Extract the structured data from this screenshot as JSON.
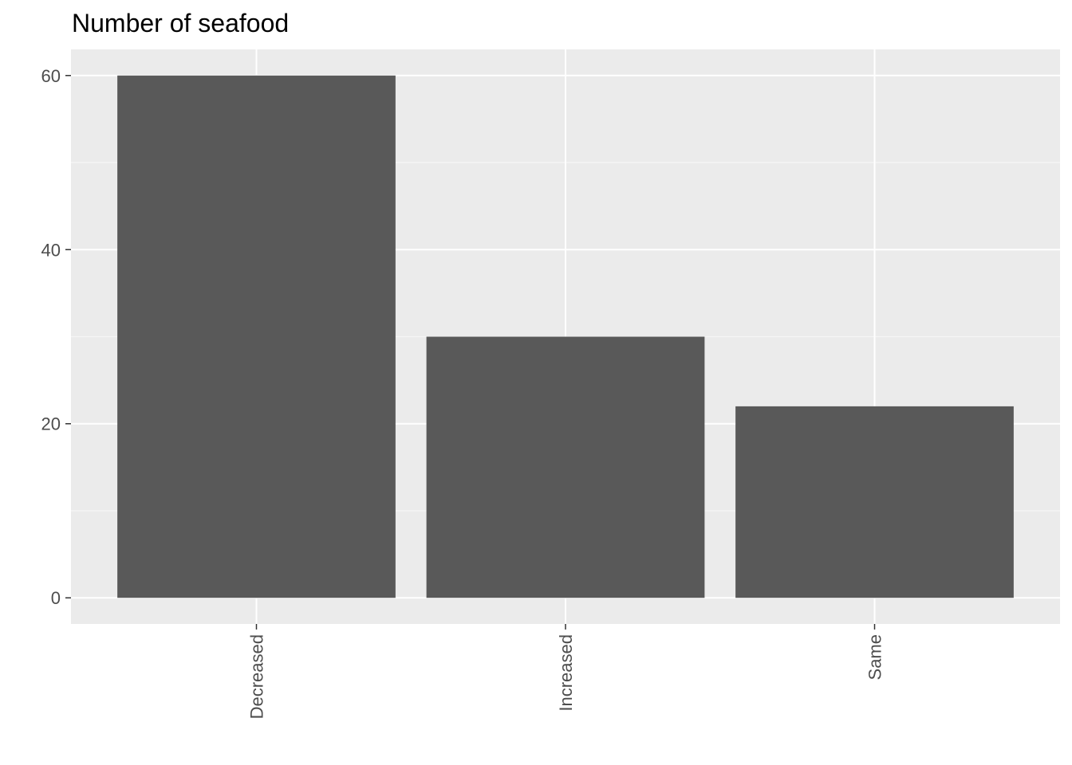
{
  "chart_data": {
    "type": "bar",
    "title": "Number of seafood",
    "xlabel": "",
    "ylabel": "",
    "categories": [
      "Decreased",
      "Increased",
      "Same"
    ],
    "values": [
      60,
      30,
      22
    ],
    "ylim": [
      0,
      63
    ],
    "yticks": [
      0,
      20,
      40,
      60
    ],
    "ytick_labels": [
      "0",
      "20",
      "40",
      "60"
    ],
    "grid": true,
    "legend": "none",
    "x_tick_rotation": "vertical",
    "colors": {
      "bar": "#595959",
      "panel": "#ebebeb",
      "grid_major": "#ffffff",
      "grid_minor": "#f5f5f5",
      "tick_mark": "#333333",
      "tick_text": "#4d4d4d"
    }
  }
}
